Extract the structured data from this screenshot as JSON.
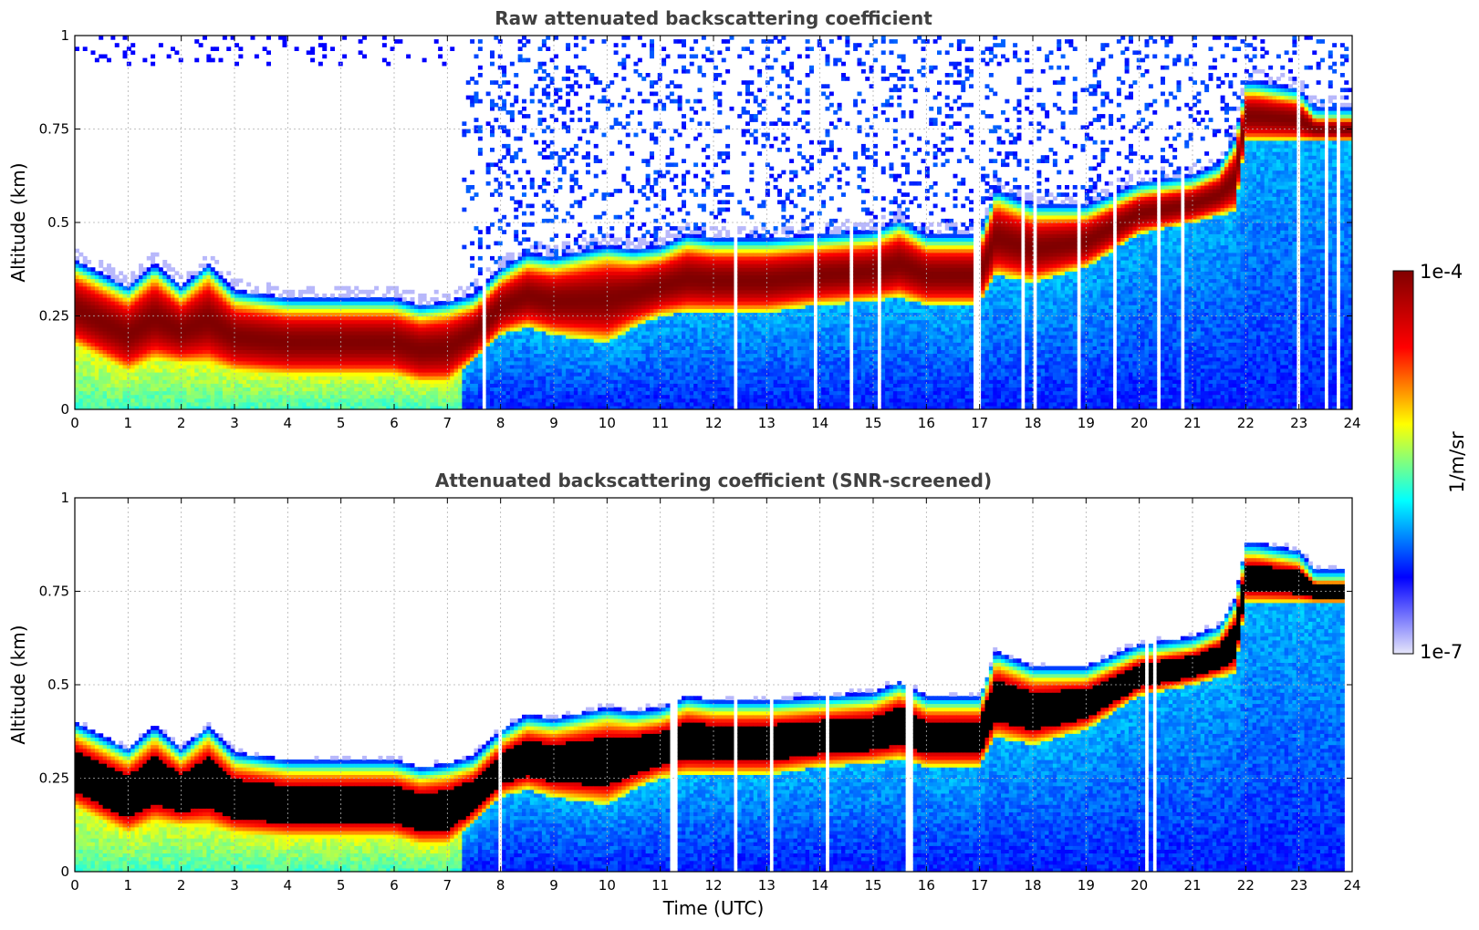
{
  "chart_data": [
    {
      "type": "heatmap",
      "title": "Raw attenuated backscattering coefficient",
      "xlabel": "",
      "ylabel": "Altitude (km)",
      "xlim": [
        0,
        24
      ],
      "ylim": [
        0,
        1
      ],
      "xticks": [
        "0",
        "1",
        "2",
        "3",
        "4",
        "5",
        "6",
        "7",
        "8",
        "9",
        "10",
        "11",
        "12",
        "13",
        "14",
        "15",
        "16",
        "17",
        "18",
        "19",
        "20",
        "21",
        "22",
        "23",
        "24"
      ],
      "yticks": [
        "0",
        "0.25",
        "0.5",
        "0.75",
        "1"
      ],
      "grid": true,
      "screened": false,
      "layer": {
        "time": [
          0,
          1,
          1.5,
          2,
          2.5,
          3,
          4,
          5,
          6,
          6.5,
          7,
          7.5,
          8,
          8.5,
          9,
          10,
          10.5,
          11,
          11.5,
          12,
          13,
          14,
          15,
          15.5,
          16,
          17,
          17.3,
          18,
          19,
          20,
          21,
          21.5,
          21.8,
          22,
          22.2,
          23,
          23.3
        ],
        "top": [
          0.37,
          0.3,
          0.36,
          0.3,
          0.36,
          0.29,
          0.27,
          0.27,
          0.27,
          0.25,
          0.26,
          0.28,
          0.35,
          0.39,
          0.38,
          0.41,
          0.4,
          0.41,
          0.44,
          0.43,
          0.43,
          0.44,
          0.45,
          0.48,
          0.44,
          0.44,
          0.56,
          0.52,
          0.52,
          0.58,
          0.6,
          0.63,
          0.7,
          0.85,
          0.85,
          0.83,
          0.78
        ],
        "bottom": [
          0.17,
          0.1,
          0.13,
          0.12,
          0.12,
          0.1,
          0.09,
          0.09,
          0.09,
          0.07,
          0.07,
          0.13,
          0.2,
          0.22,
          0.2,
          0.18,
          0.22,
          0.25,
          0.26,
          0.26,
          0.26,
          0.28,
          0.29,
          0.3,
          0.28,
          0.28,
          0.36,
          0.34,
          0.38,
          0.47,
          0.5,
          0.52,
          0.53,
          0.72,
          0.72,
          0.72,
          0.72
        ]
      }
    },
    {
      "type": "heatmap",
      "title": "Attenuated backscattering coefficient (SNR-screened)",
      "xlabel": "Time (UTC)",
      "ylabel": "Altitude (km)",
      "xlim": [
        0,
        24
      ],
      "ylim": [
        0,
        1
      ],
      "xticks": [
        "0",
        "1",
        "2",
        "3",
        "4",
        "5",
        "6",
        "7",
        "8",
        "9",
        "10",
        "11",
        "12",
        "13",
        "14",
        "15",
        "16",
        "17",
        "18",
        "19",
        "20",
        "21",
        "22",
        "23",
        "24"
      ],
      "yticks": [
        "0",
        "0.25",
        "0.5",
        "0.75",
        "1"
      ],
      "grid": true,
      "screened": true
    }
  ],
  "colorbar": {
    "label": "1/m/sr",
    "max_label": "1e-4",
    "min_label": "1e-7",
    "colormap": [
      "#e6e6fa",
      "#0000ff",
      "#00ffff",
      "#ffff00",
      "#ff0000",
      "#800000"
    ]
  }
}
